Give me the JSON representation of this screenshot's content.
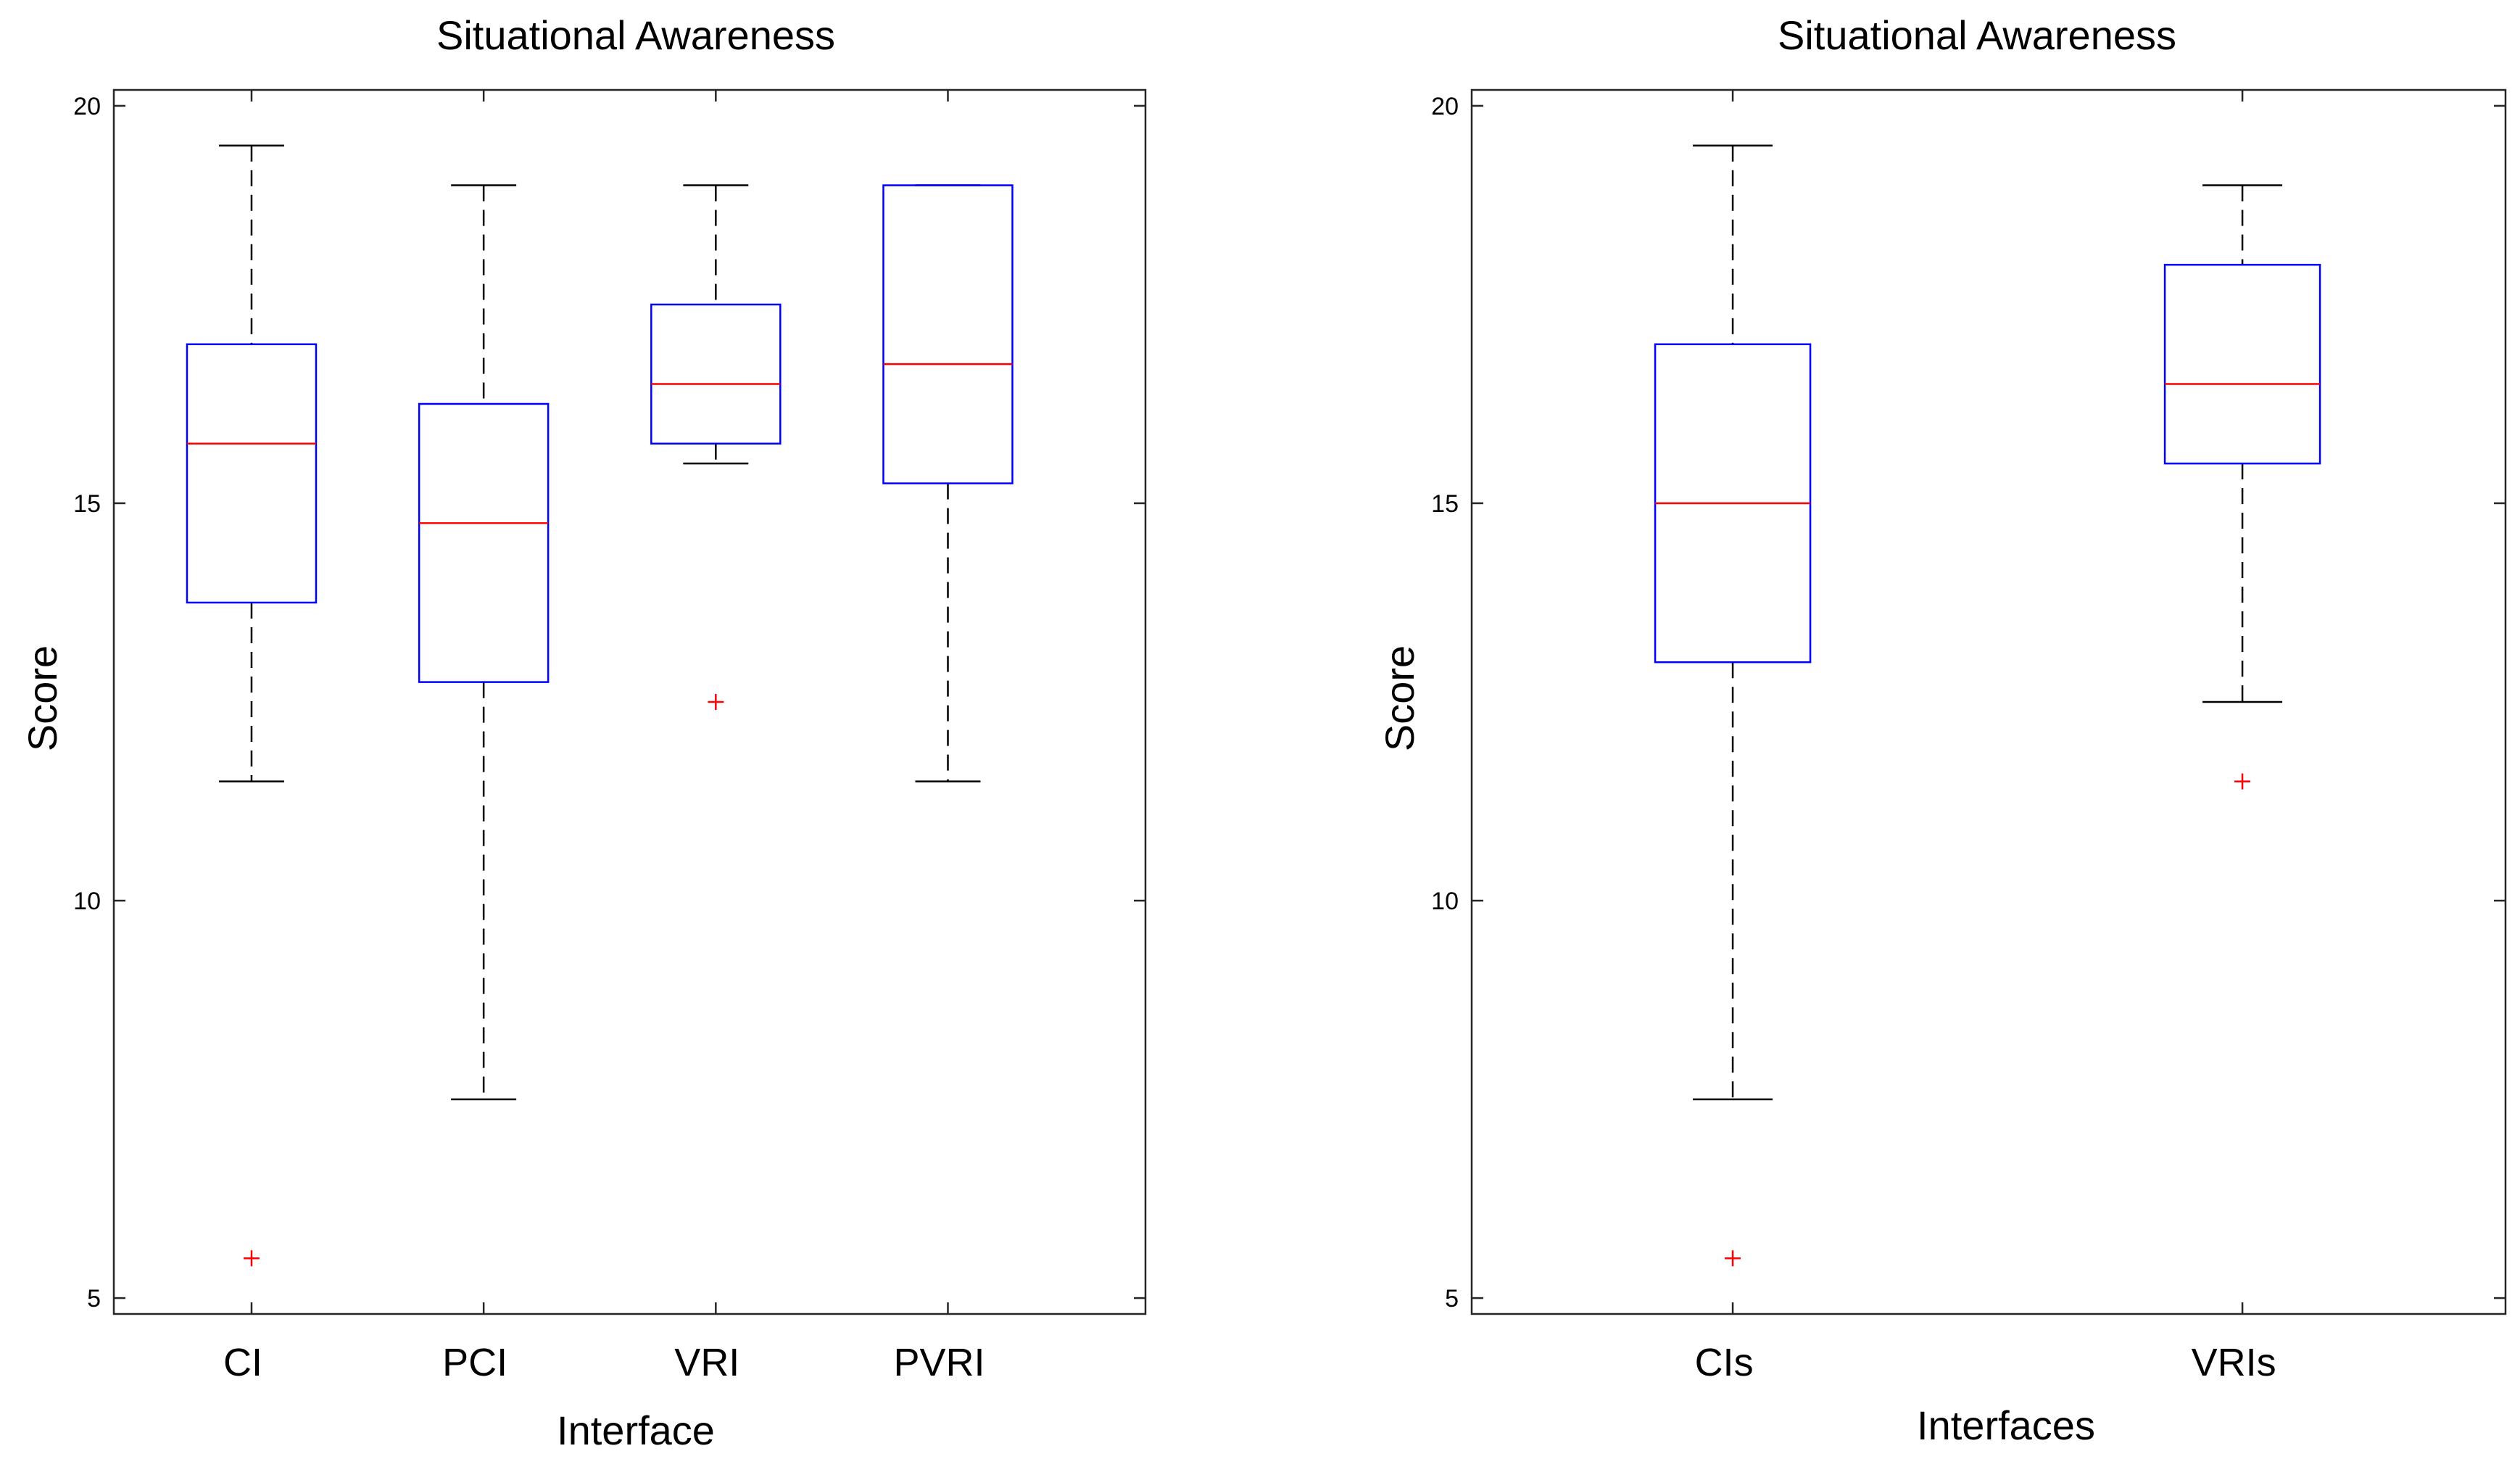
{
  "chart_data": [
    {
      "type": "boxplot",
      "title": "Situational Awareness",
      "xlabel": "Interface",
      "ylabel": "Score",
      "ylim": [
        4.8,
        20.2
      ],
      "yticks": [
        5,
        10,
        15,
        20
      ],
      "colors": {
        "box": "#0000ff",
        "median": "#ff0000",
        "whisker": "#000000",
        "outlier": "#ff0000"
      },
      "categories": [
        "CI",
        "PCI",
        "VRI",
        "PVRI"
      ],
      "boxes": [
        {
          "name": "CI",
          "whisker_low": 11.5,
          "q1": 13.75,
          "median": 15.75,
          "q3": 17.0,
          "whisker_high": 19.5,
          "outliers": [
            5.5
          ]
        },
        {
          "name": "PCI",
          "whisker_low": 7.5,
          "q1": 12.75,
          "median": 14.75,
          "q3": 16.25,
          "whisker_high": 19.0,
          "outliers": []
        },
        {
          "name": "VRI",
          "whisker_low": 15.5,
          "q1": 15.75,
          "median": 16.5,
          "q3": 17.5,
          "whisker_high": 19.0,
          "outliers": [
            12.5
          ]
        },
        {
          "name": "PVRI",
          "whisker_low": 11.5,
          "q1": 15.25,
          "median": 16.75,
          "q3": 19.0,
          "whisker_high": 19.0,
          "outliers": []
        }
      ]
    },
    {
      "type": "boxplot",
      "title": "Situational Awareness",
      "xlabel": "Interfaces",
      "ylabel": "Score",
      "ylim": [
        4.8,
        20.2
      ],
      "yticks": [
        5,
        10,
        15,
        20
      ],
      "colors": {
        "box": "#0000ff",
        "median": "#ff0000",
        "whisker": "#000000",
        "outlier": "#ff0000"
      },
      "categories": [
        "CIs",
        "VRIs"
      ],
      "boxes": [
        {
          "name": "CIs",
          "whisker_low": 7.5,
          "q1": 13.0,
          "median": 15.0,
          "q3": 17.0,
          "whisker_high": 19.5,
          "outliers": [
            5.5
          ]
        },
        {
          "name": "VRIs",
          "whisker_low": 12.5,
          "q1": 15.5,
          "median": 16.5,
          "q3": 18.0,
          "whisker_high": 19.0,
          "outliers": [
            11.5
          ]
        }
      ]
    }
  ]
}
